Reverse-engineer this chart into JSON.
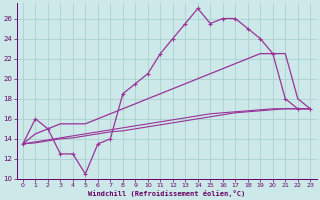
{
  "bg_color": "#cce8e8",
  "grid_color": "#b0d4d4",
  "line_color": "#993399",
  "xlabel": "Windchill (Refroidissement éolien,°C)",
  "xlabel_color": "#660066",
  "tick_color": "#660066",
  "xlim": [
    -0.5,
    23.5
  ],
  "ylim": [
    10,
    27.5
  ],
  "yticks": [
    10,
    12,
    14,
    16,
    18,
    20,
    22,
    24,
    26
  ],
  "xticks": [
    0,
    1,
    2,
    3,
    4,
    5,
    6,
    7,
    8,
    9,
    10,
    11,
    12,
    13,
    14,
    15,
    16,
    17,
    18,
    19,
    20,
    21,
    22,
    23
  ],
  "line1_x": [
    0,
    1,
    2,
    3,
    4,
    5,
    6,
    7,
    8,
    9,
    10,
    11,
    12,
    13,
    14,
    15,
    16,
    17,
    18,
    19,
    20,
    21,
    22,
    23
  ],
  "line1_y": [
    13.5,
    16.0,
    15.0,
    12.5,
    12.5,
    10.5,
    13.5,
    14.0,
    18.5,
    19.5,
    20.5,
    22.5,
    24.0,
    25.5,
    27.0,
    25.5,
    26.0,
    26.0,
    25.0,
    24.0,
    22.5,
    18.0,
    17.0,
    17.0
  ],
  "line2_x": [
    0,
    1,
    2,
    3,
    4,
    5,
    6,
    7,
    8,
    9,
    10,
    11,
    12,
    13,
    14,
    15,
    16,
    17,
    18,
    19,
    20,
    21,
    22,
    23
  ],
  "line2_y": [
    13.5,
    14.5,
    15.0,
    15.5,
    15.5,
    15.5,
    16.0,
    16.5,
    17.0,
    17.5,
    18.0,
    18.5,
    19.0,
    19.5,
    20.0,
    20.5,
    21.0,
    21.5,
    22.0,
    22.5,
    22.5,
    22.5,
    18.0,
    17.0
  ],
  "line3_x": [
    0,
    1,
    2,
    3,
    4,
    5,
    6,
    7,
    8,
    9,
    10,
    11,
    12,
    13,
    14,
    15,
    16,
    17,
    18,
    19,
    20,
    21,
    22,
    23
  ],
  "line3_y": [
    13.5,
    13.7,
    13.9,
    14.1,
    14.3,
    14.5,
    14.7,
    14.9,
    15.1,
    15.3,
    15.5,
    15.7,
    15.9,
    16.1,
    16.3,
    16.5,
    16.6,
    16.7,
    16.8,
    16.9,
    17.0,
    17.0,
    17.0,
    17.0
  ],
  "line4_x": [
    0,
    1,
    2,
    3,
    4,
    5,
    6,
    7,
    8,
    9,
    10,
    11,
    12,
    13,
    14,
    15,
    16,
    17,
    18,
    19,
    20,
    21,
    22,
    23
  ],
  "line4_y": [
    13.5,
    13.6,
    13.8,
    14.0,
    14.1,
    14.3,
    14.5,
    14.7,
    14.8,
    15.0,
    15.2,
    15.4,
    15.6,
    15.8,
    16.0,
    16.2,
    16.4,
    16.6,
    16.7,
    16.8,
    16.9,
    17.0,
    17.0,
    17.0
  ]
}
